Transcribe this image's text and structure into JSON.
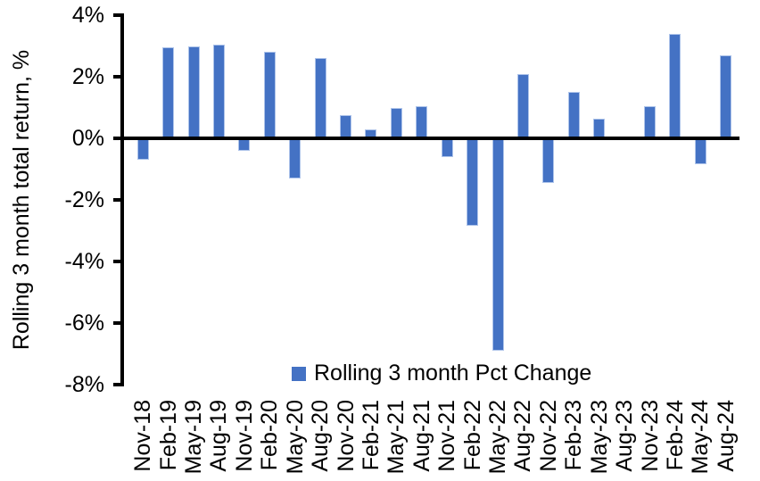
{
  "chart_data": {
    "type": "bar",
    "title": "",
    "xlabel": "",
    "ylabel": "Rolling 3 month total return, %",
    "legend": [
      "Rolling 3 month Pct Change"
    ],
    "legend_position": "bottom-center-inside",
    "grid": false,
    "ylim": [
      -8,
      4
    ],
    "ytick_step": 2,
    "ytick_labels": [
      "4%",
      "2%",
      "0%",
      "-2%",
      "-4%",
      "-6%",
      "-8%"
    ],
    "categories": [
      "Nov-18",
      "Feb-19",
      "May-19",
      "Aug-19",
      "Nov-19",
      "Feb-20",
      "May-20",
      "Aug-20",
      "Nov-20",
      "Feb-21",
      "May-21",
      "Aug-21",
      "Nov-21",
      "Feb-22",
      "May-22",
      "Aug-22",
      "Nov-22",
      "Feb-23",
      "May-23",
      "Aug-23",
      "Nov-23",
      "Feb-24",
      "May-24",
      "Aug-24"
    ],
    "values": [
      -0.7,
      2.95,
      3.0,
      3.05,
      -0.4,
      2.8,
      -1.3,
      2.6,
      0.75,
      0.3,
      1.0,
      1.05,
      -0.6,
      -2.85,
      -6.9,
      2.1,
      -1.45,
      1.5,
      0.65,
      0.0,
      1.05,
      3.4,
      -0.85,
      2.7
    ],
    "bar_color": "#4472C4",
    "bar_border_color": "#AEC4EA",
    "axis_color": "#000000"
  }
}
